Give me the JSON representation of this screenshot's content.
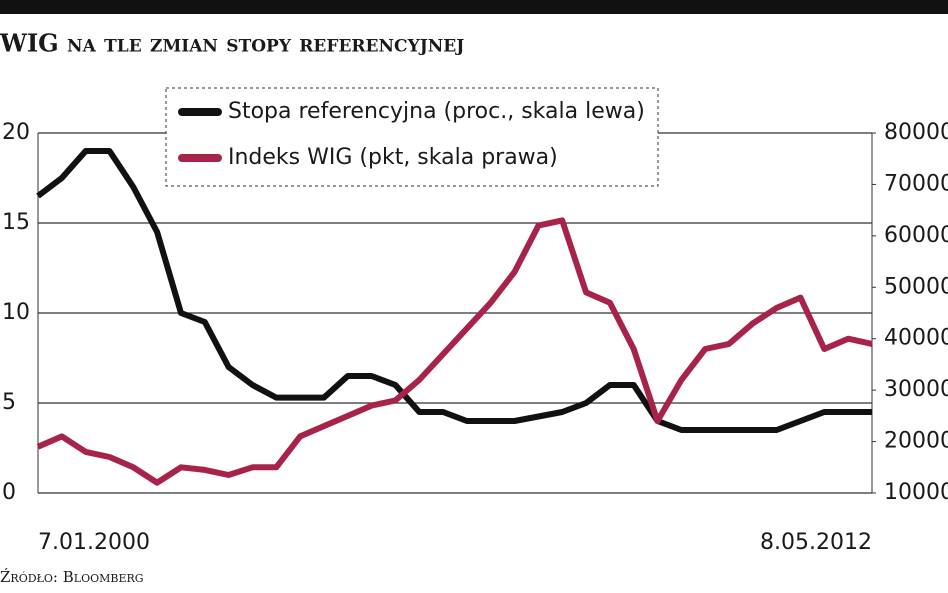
{
  "chart_data": {
    "type": "line",
    "title": "WIG na tle zmian stopy referencyjnej",
    "source": "Źródło: Bloomberg",
    "categories": [
      "7.01.2000",
      null,
      null,
      null,
      null,
      null,
      null,
      null,
      null,
      null,
      null,
      null,
      null,
      null,
      null,
      null,
      null,
      null,
      null,
      null,
      null,
      null,
      null,
      null,
      null,
      null,
      null,
      null,
      null,
      null,
      null,
      null,
      null,
      null,
      null,
      "8.05.2012"
    ],
    "series": [
      {
        "name": "Stopa referencyjna (proc., skala lewa)",
        "color": "#111111",
        "values": [
          16.5,
          17.5,
          19,
          19,
          17,
          14.5,
          10,
          9.5,
          7,
          6,
          5.3,
          5.3,
          5.3,
          6.5,
          6.5,
          6,
          4.5,
          4.5,
          4,
          4,
          4,
          4.25,
          4.5,
          5,
          6,
          6,
          4,
          3.5,
          3.5,
          3.5,
          3.5,
          3.5,
          4,
          4.5,
          4.5,
          4.5
        ]
      },
      {
        "name": "Indeks WIG (pkt, skala prawa)",
        "color": "#a8234a",
        "axis": "y2",
        "values": [
          19000,
          21000,
          18000,
          17000,
          15000,
          12000,
          15000,
          14500,
          13500,
          15000,
          15000,
          21000,
          23000,
          25000,
          27000,
          28000,
          32000,
          37000,
          42000,
          47000,
          53000,
          62000,
          63000,
          49000,
          47000,
          38000,
          24000,
          32000,
          38000,
          39000,
          43000,
          46000,
          48000,
          38000,
          40000,
          39000
        ]
      }
    ],
    "ylim": [
      0,
      20
    ],
    "yticks": [
      0,
      5,
      10,
      15,
      20
    ],
    "y2lim": [
      10000,
      80000
    ],
    "y2ticks": [
      10000,
      20000,
      30000,
      40000,
      50000,
      60000,
      70000,
      80000
    ],
    "grid": true
  }
}
